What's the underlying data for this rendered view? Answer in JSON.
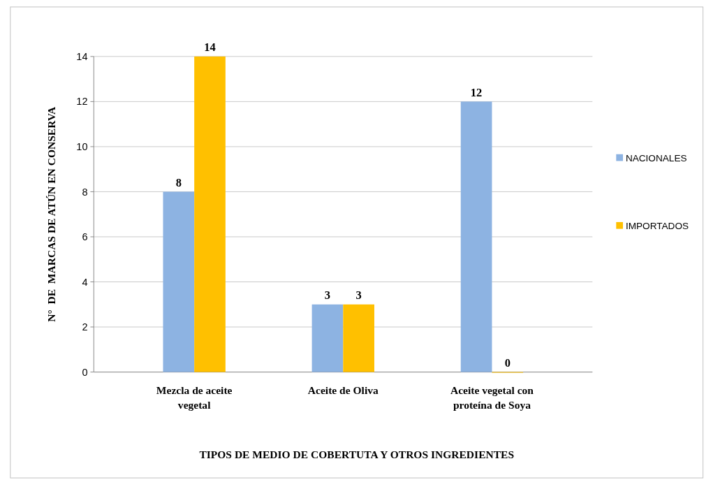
{
  "chart_data": {
    "type": "bar",
    "xlabel": "TIPOS DE MEDIO DE COBERTUTA Y OTROS INGREDIENTES",
    "ylabel": "N°  DE  MARCAS DE ATÚN EN CONSERVA",
    "categories": [
      "Mezcla de aceite vegetal",
      "Aceite de Oliva",
      "Aceite  vegetal con proteína de Soya"
    ],
    "series": [
      {
        "name": "NACIONALES",
        "color": "#8db3e2",
        "values": [
          8,
          3,
          12
        ]
      },
      {
        "name": "IMPORTADOS",
        "color": "#ffc000",
        "values": [
          14,
          3,
          0
        ]
      }
    ],
    "ylim": [
      0,
      14
    ],
    "yticks": [
      0,
      2,
      4,
      6,
      8,
      10,
      12,
      14
    ],
    "grid": "y",
    "legend": "right",
    "data_labels": true
  }
}
